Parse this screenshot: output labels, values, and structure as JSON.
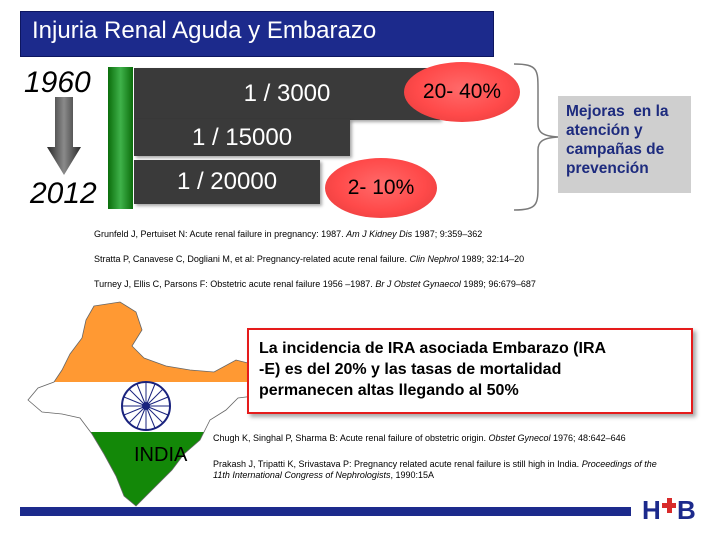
{
  "title": "Injuria Renal Aguda y Embarazo",
  "years": {
    "start": "1960",
    "end": "2012"
  },
  "incidence": [
    {
      "label": "1 / 3000"
    },
    {
      "label": "1 / 15000"
    },
    {
      "label": "1 / 20000"
    }
  ],
  "mortality": [
    {
      "label": "20- 40%"
    },
    {
      "label": "2- 10%"
    }
  ],
  "improvements": {
    "lines": [
      "Mejoras  en la",
      "atención y",
      "campañas de",
      "prevención"
    ]
  },
  "references_top": [
    {
      "text": "Grunfeld J, Pertuiset N: Acute renal failure in pregnancy: 1987. ",
      "journal": "Am J Kidney Dis",
      "tail": " 1987; 9:359–362"
    },
    {
      "text": "Stratta P, Canavese C, Dogliani M, et al: Pregnancy-related acute renal failure. ",
      "journal": "Clin Nephrol",
      "tail": " 1989; 32:14–20"
    },
    {
      "text": "Turney J, Ellis C, Parsons F: Obstetric acute renal failure 1956 –1987. ",
      "journal": "Br J Obstet Gynaecol",
      "tail": " 1989; 96:679–687"
    }
  ],
  "highlight": {
    "lines": [
      "La incidencia de IRA asociada Embarazo (IRA",
      "-E) es del 20% y las tasas de mortalidad",
      "permanecen altas llegando al 50%"
    ]
  },
  "country_label": "INDIA",
  "references_bottom": [
    {
      "text": "Chugh K, Singhal P, Sharma B: Acute renal failure of obstetric origin. ",
      "journal": "Obstet Gynecol",
      "tail": " 1976; 48:642–646"
    },
    {
      "text": "Prakash J, Tripatti K, Srivastava P: Pregnancy related acute renal failure is still high in India. ",
      "journal": "Proceedings of the",
      "tail": ""
    },
    {
      "text": "",
      "journal": "11th International Congress of Nephrologists",
      "tail": ", 1990:15A"
    }
  ],
  "logo": {
    "text": "H✚B",
    "color": "#1c2a8c"
  },
  "colors": {
    "title_bg": "#1c2a8c",
    "bar_green": "#3fb24a",
    "dark_box": "#3a3a3a",
    "oval_red": "#ff4a4a",
    "highlight_border": "#e51b1b"
  }
}
